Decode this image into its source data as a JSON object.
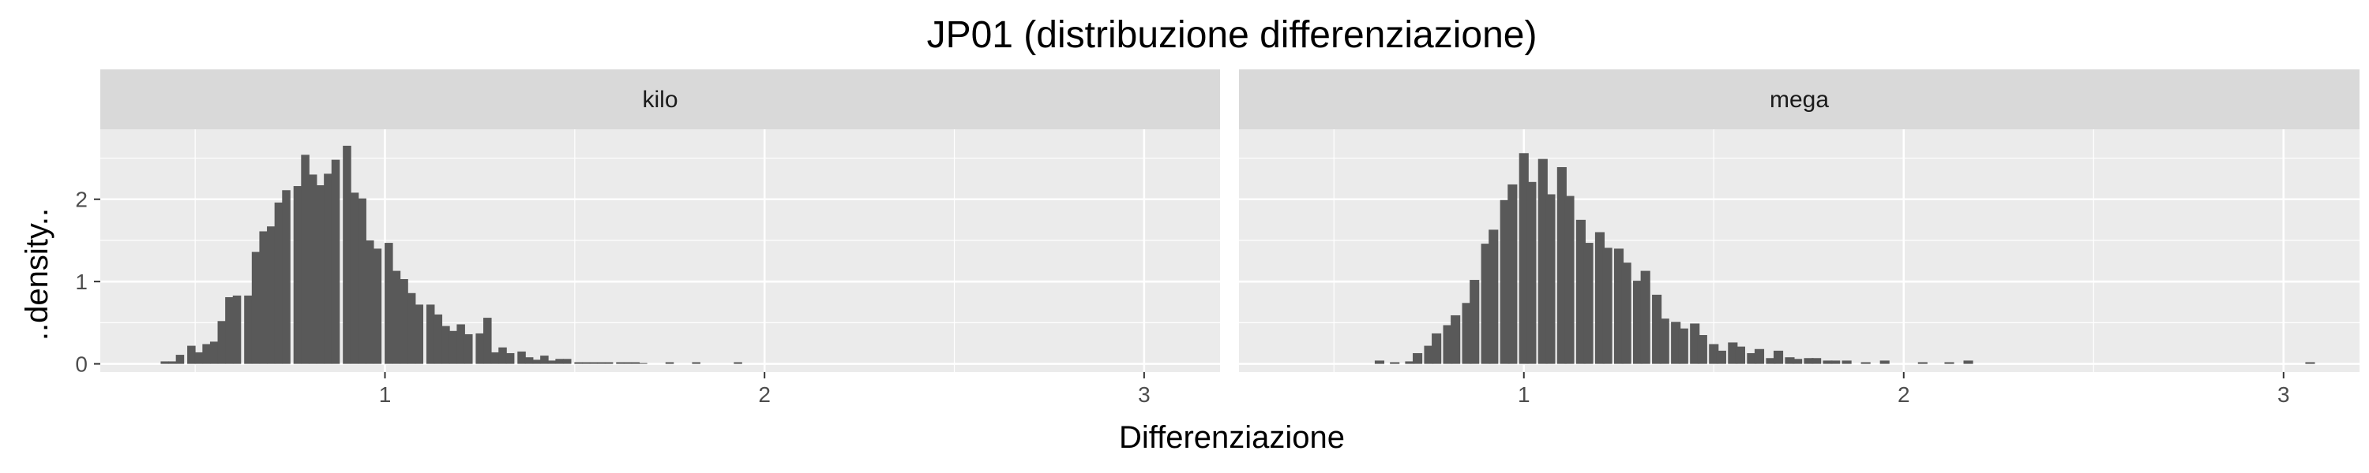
{
  "chart_data": {
    "type": "bar",
    "title": "JP01 (distribuzione differenziazione)",
    "xlabel": "Differenziazione",
    "ylabel": "..density..",
    "xlim": [
      0.25,
      3.2
    ],
    "ylim": [
      -0.1,
      2.85
    ],
    "x_ticks": [
      1,
      2,
      3
    ],
    "y_ticks": [
      0,
      1,
      2
    ],
    "grid": true,
    "facets": [
      {
        "name": "kilo",
        "bin_width": 0.0219,
        "bins": [
          [
            0.42,
            0.03
          ],
          [
            0.44,
            0.03
          ],
          [
            0.46,
            0.11
          ],
          [
            0.49,
            0.22
          ],
          [
            0.51,
            0.14
          ],
          [
            0.53,
            0.24
          ],
          [
            0.55,
            0.27
          ],
          [
            0.57,
            0.52
          ],
          [
            0.59,
            0.81
          ],
          [
            0.61,
            0.83
          ],
          [
            0.64,
            0.83
          ],
          [
            0.66,
            1.36
          ],
          [
            0.68,
            1.61
          ],
          [
            0.7,
            1.67
          ],
          [
            0.72,
            1.96
          ],
          [
            0.74,
            2.11
          ],
          [
            0.77,
            2.16
          ],
          [
            0.79,
            2.54
          ],
          [
            0.81,
            2.3
          ],
          [
            0.83,
            2.17
          ],
          [
            0.85,
            2.31
          ],
          [
            0.87,
            2.48
          ],
          [
            0.9,
            2.65
          ],
          [
            0.92,
            2.08
          ],
          [
            0.94,
            2.01
          ],
          [
            0.96,
            1.5
          ],
          [
            0.98,
            1.4
          ],
          [
            1.01,
            1.47
          ],
          [
            1.03,
            1.13
          ],
          [
            1.05,
            1.03
          ],
          [
            1.07,
            0.86
          ],
          [
            1.09,
            0.72
          ],
          [
            1.12,
            0.72
          ],
          [
            1.14,
            0.6
          ],
          [
            1.16,
            0.46
          ],
          [
            1.18,
            0.4
          ],
          [
            1.2,
            0.48
          ],
          [
            1.22,
            0.36
          ],
          [
            1.25,
            0.37
          ],
          [
            1.27,
            0.56
          ],
          [
            1.29,
            0.14
          ],
          [
            1.31,
            0.2
          ],
          [
            1.33,
            0.13
          ],
          [
            1.36,
            0.15
          ],
          [
            1.38,
            0.08
          ],
          [
            1.4,
            0.05
          ],
          [
            1.42,
            0.1
          ],
          [
            1.44,
            0.04
          ],
          [
            1.46,
            0.06
          ],
          [
            1.48,
            0.06
          ],
          [
            1.51,
            0.02
          ],
          [
            1.53,
            0.02
          ],
          [
            1.55,
            0.02
          ],
          [
            1.57,
            0.02
          ],
          [
            1.59,
            0.02
          ],
          [
            1.62,
            0.02
          ],
          [
            1.64,
            0.02
          ],
          [
            1.66,
            0.02
          ],
          [
            1.68,
            0.01
          ],
          [
            1.75,
            0.02
          ],
          [
            1.82,
            0.02
          ],
          [
            1.93,
            0.02
          ]
        ]
      },
      {
        "name": "mega",
        "bin_width": 0.0252,
        "bins": [
          [
            0.62,
            0.04
          ],
          [
            0.66,
            0.02
          ],
          [
            0.7,
            0.03
          ],
          [
            0.72,
            0.13
          ],
          [
            0.75,
            0.22
          ],
          [
            0.77,
            0.37
          ],
          [
            0.8,
            0.47
          ],
          [
            0.82,
            0.59
          ],
          [
            0.85,
            0.74
          ],
          [
            0.87,
            1.02
          ],
          [
            0.9,
            1.46
          ],
          [
            0.92,
            1.63
          ],
          [
            0.95,
            1.99
          ],
          [
            0.97,
            2.18
          ],
          [
            1.0,
            2.56
          ],
          [
            1.02,
            2.21
          ],
          [
            1.05,
            2.49
          ],
          [
            1.07,
            2.06
          ],
          [
            1.1,
            2.39
          ],
          [
            1.12,
            2.04
          ],
          [
            1.15,
            1.75
          ],
          [
            1.17,
            1.47
          ],
          [
            1.2,
            1.6
          ],
          [
            1.22,
            1.41
          ],
          [
            1.25,
            1.4
          ],
          [
            1.27,
            1.23
          ],
          [
            1.3,
            1.01
          ],
          [
            1.32,
            1.13
          ],
          [
            1.35,
            0.84
          ],
          [
            1.37,
            0.55
          ],
          [
            1.4,
            0.51
          ],
          [
            1.42,
            0.43
          ],
          [
            1.45,
            0.49
          ],
          [
            1.47,
            0.35
          ],
          [
            1.5,
            0.24
          ],
          [
            1.52,
            0.16
          ],
          [
            1.55,
            0.26
          ],
          [
            1.57,
            0.21
          ],
          [
            1.6,
            0.13
          ],
          [
            1.62,
            0.18
          ],
          [
            1.65,
            0.07
          ],
          [
            1.67,
            0.16
          ],
          [
            1.7,
            0.08
          ],
          [
            1.72,
            0.06
          ],
          [
            1.75,
            0.07
          ],
          [
            1.77,
            0.07
          ],
          [
            1.8,
            0.04
          ],
          [
            1.82,
            0.04
          ],
          [
            1.85,
            0.04
          ],
          [
            1.9,
            0.02
          ],
          [
            1.95,
            0.04
          ],
          [
            2.05,
            0.02
          ],
          [
            2.12,
            0.02
          ],
          [
            2.17,
            0.04
          ],
          [
            3.07,
            0.02
          ]
        ]
      }
    ]
  },
  "colors": {
    "panel_background": "#ebebeb",
    "strip_background": "#d9d9d9",
    "grid": "#ffffff",
    "bar_fill": "#595959",
    "text": "#1a1a1a",
    "tick_text": "#4d4d4d"
  }
}
